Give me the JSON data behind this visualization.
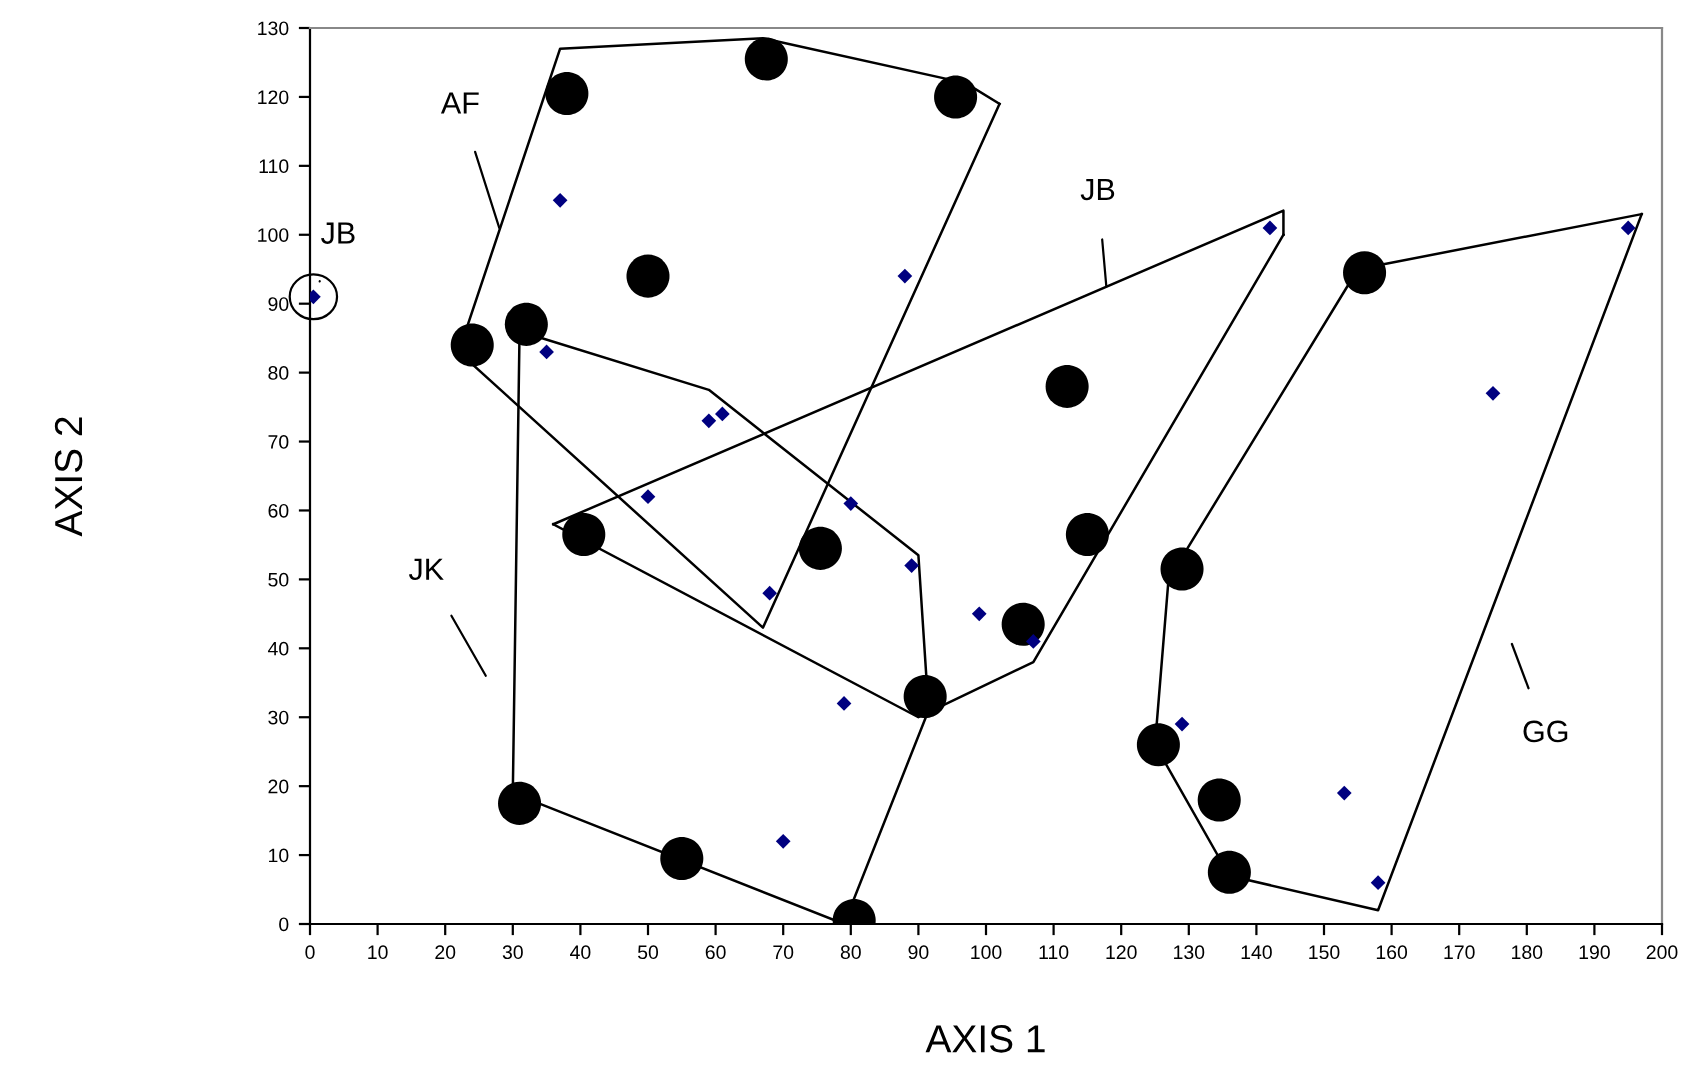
{
  "chart_data": {
    "type": "scatter",
    "xlabel": "AXIS 1",
    "ylabel": "AXIS 2",
    "xlim": [
      0,
      200
    ],
    "ylim": [
      0,
      130
    ],
    "xticks": [
      0,
      10,
      20,
      30,
      40,
      50,
      60,
      70,
      80,
      90,
      100,
      110,
      120,
      130,
      140,
      150,
      160,
      170,
      180,
      190,
      200
    ],
    "yticks": [
      0,
      10,
      20,
      30,
      40,
      50,
      60,
      70,
      80,
      90,
      100,
      110,
      120,
      130
    ],
    "grid": false,
    "legend": false,
    "series": [
      {
        "marker": "circle",
        "color": "#000000",
        "x": [
          38,
          67.5,
          95.5,
          50,
          24,
          32,
          112,
          156,
          40.5,
          75.5,
          115,
          105.5,
          91,
          129,
          125.5,
          134.5,
          136,
          31,
          55,
          80.5
        ],
        "values": [
          120.5,
          125.5,
          120,
          94,
          84,
          87,
          78,
          94.5,
          56.5,
          54.5,
          56.5,
          43.5,
          33,
          51.5,
          26,
          18,
          7.5,
          17.5,
          9.5,
          0.5
        ]
      },
      {
        "marker": "diamond",
        "color": "#000080",
        "x": [
          0.5,
          37,
          35,
          59,
          61,
          88,
          50,
          80,
          68,
          89,
          99,
          107,
          79,
          70,
          142,
          195,
          175,
          129,
          153,
          158
        ],
        "values": [
          91,
          105,
          83,
          73,
          74,
          94,
          62,
          61,
          48,
          52,
          45,
          41,
          32,
          12,
          101,
          101,
          77,
          29,
          19,
          6
        ]
      },
      {
        "type": "line",
        "marker": "none",
        "color": "#000000",
        "x": [
          22,
          37,
          67,
          97,
          102
        ],
        "values": [
          83,
          127,
          128.5,
          122,
          119
        ]
      },
      {
        "type": "line",
        "marker": "none",
        "color": "#000000",
        "x": [
          22,
          67,
          102
        ],
        "values": [
          83,
          43,
          119
        ]
      },
      {
        "type": "line",
        "marker": "none",
        "color": "#000000",
        "x": [
          30,
          31,
          59,
          90,
          91.5
        ],
        "values": [
          19,
          86,
          77.5,
          53.5,
          31
        ]
      },
      {
        "type": "line",
        "marker": "none",
        "color": "#000000",
        "x": [
          30,
          79,
          91.5
        ],
        "values": [
          19,
          0,
          31
        ]
      },
      {
        "type": "line",
        "marker": "none",
        "color": "#000000",
        "x": [
          36,
          144,
          144
        ],
        "values": [
          58,
          103.5,
          100
        ]
      },
      {
        "type": "line",
        "marker": "none",
        "color": "#000000",
        "x": [
          36,
          90,
          107,
          144
        ],
        "values": [
          58,
          30,
          38,
          100
        ]
      },
      {
        "type": "line",
        "marker": "none",
        "color": "#000000",
        "x": [
          125,
          127,
          155,
          197
        ],
        "values": [
          26,
          50,
          95,
          103
        ]
      },
      {
        "type": "line",
        "marker": "none",
        "color": "#000000",
        "x": [
          125,
          136,
          158,
          197
        ],
        "values": [
          26,
          7,
          2,
          103
        ]
      }
    ],
    "annotations": [
      {
        "text": "AF",
        "x": 28,
        "y": 101
      },
      {
        "text": "JB",
        "x": 0.5,
        "y": 91
      },
      {
        "text": "JB",
        "x": 117.8,
        "y": 92.5
      },
      "JK",
      "GG"
    ]
  }
}
